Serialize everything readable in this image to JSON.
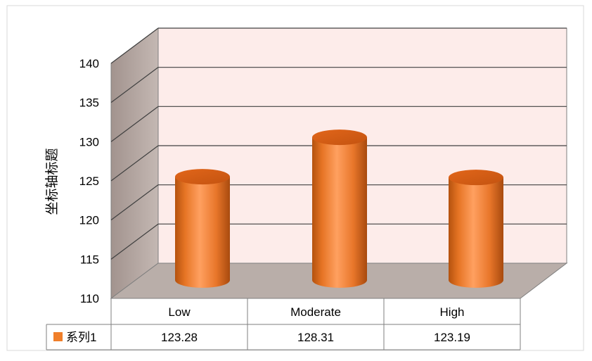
{
  "chart_data": {
    "type": "bar",
    "style": "3d-cylinder",
    "title": "",
    "xlabel": "",
    "ylabel": "坐标轴标题",
    "ylim": [
      110,
      140
    ],
    "yticks": [
      110,
      115,
      120,
      125,
      130,
      135,
      140
    ],
    "categories": [
      "Low",
      "Moderate",
      "High"
    ],
    "series": [
      {
        "name": "系列1",
        "values": [
          123.28,
          128.31,
          123.19
        ],
        "color": "#F07F2A"
      }
    ],
    "grid": true,
    "legend": "data-table",
    "data_table": true,
    "colors": {
      "back_wall": "#FDECEA",
      "side_wall": "#B7AAA5",
      "floor": "#B9AEA9",
      "bar": "#F07F2A"
    }
  }
}
